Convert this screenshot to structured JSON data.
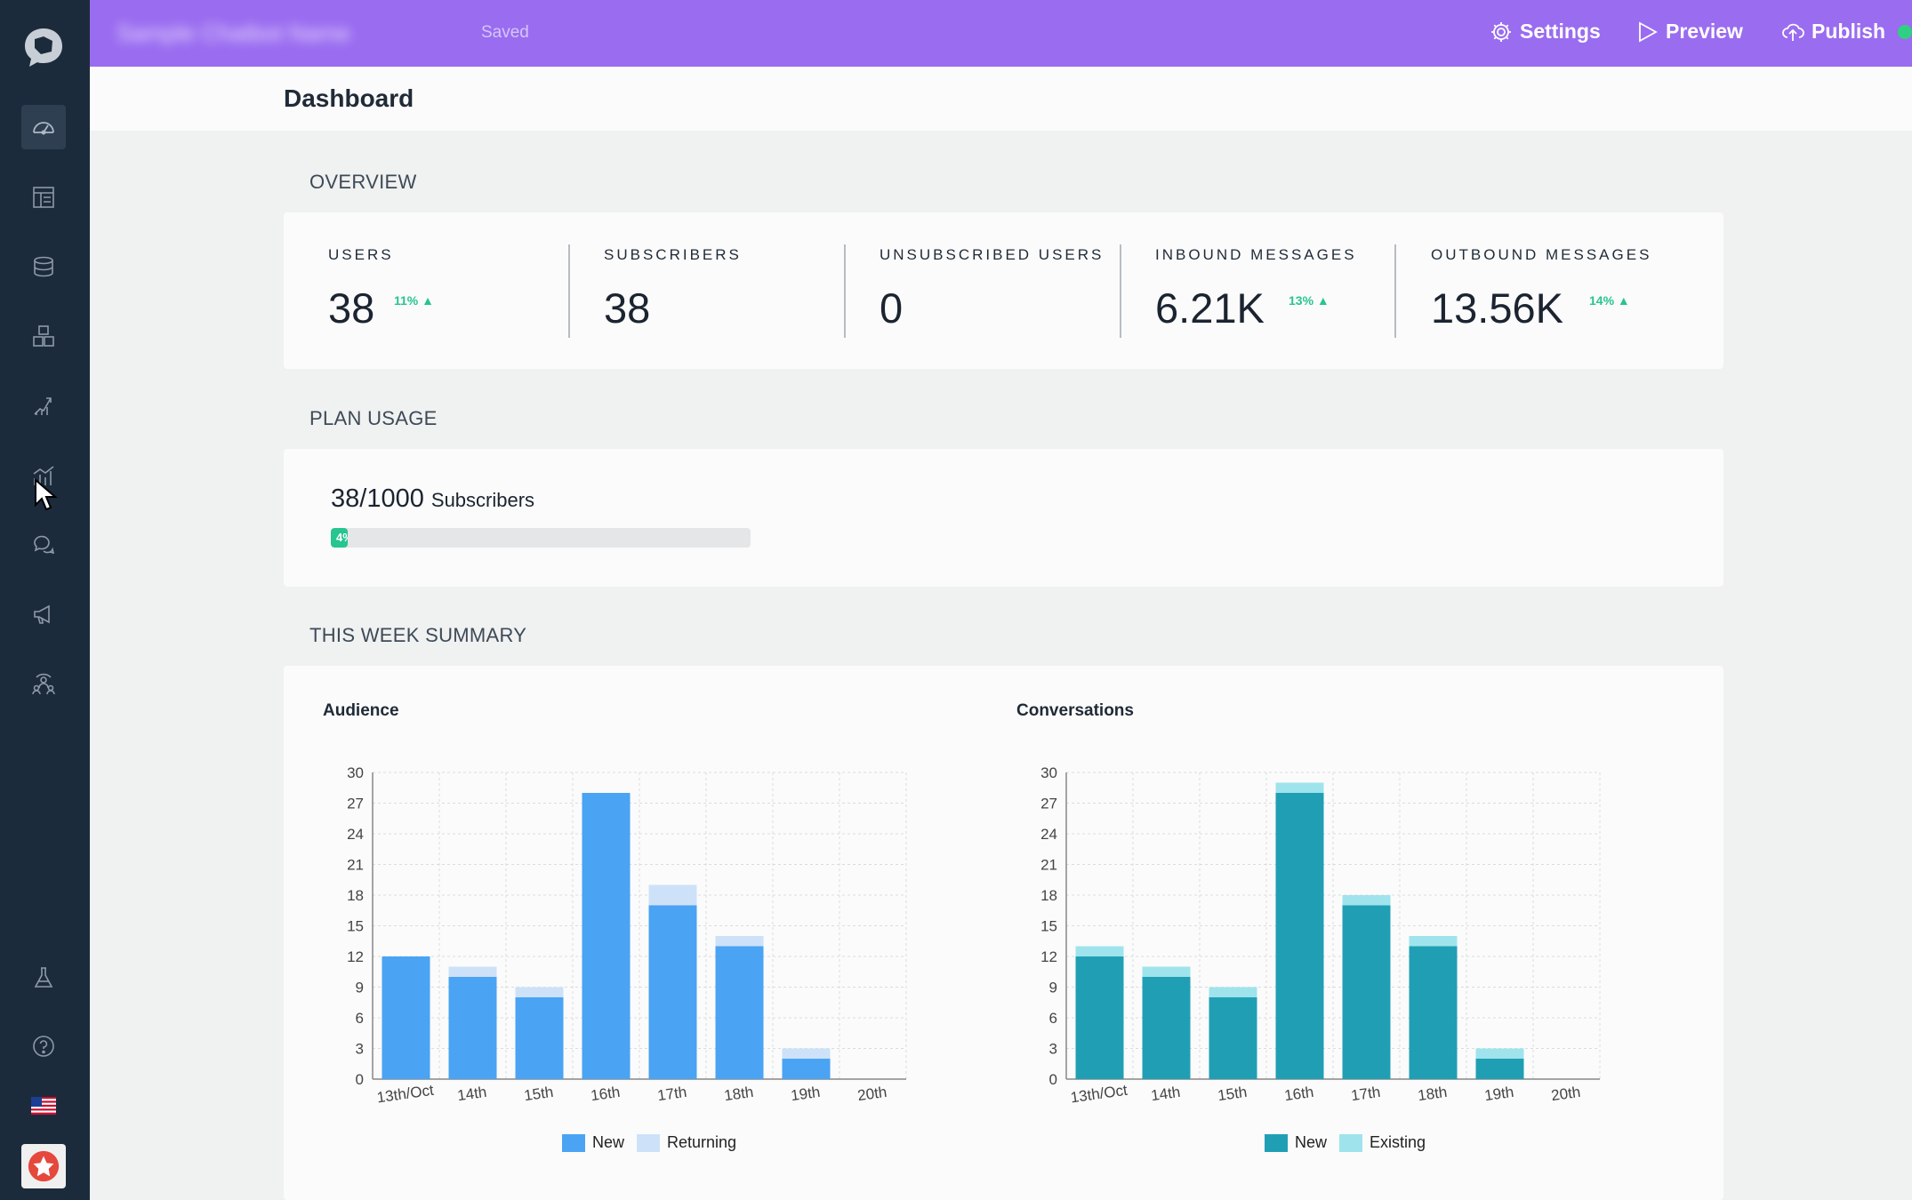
{
  "app": {
    "bot_name": "Sample Chatbot Name",
    "saved_label": "Saved"
  },
  "topbar": {
    "settings_label": "Settings",
    "preview_label": "Preview",
    "publish_label": "Publish"
  },
  "sidebar": {
    "items": [
      {
        "name": "dashboard",
        "icon": "speedometer-icon"
      },
      {
        "name": "builder",
        "icon": "layout-icon"
      },
      {
        "name": "database",
        "icon": "database-icon"
      },
      {
        "name": "integrations",
        "icon": "blocks-icon"
      },
      {
        "name": "growth",
        "icon": "growth-icon"
      },
      {
        "name": "analytics",
        "icon": "chart-icon"
      },
      {
        "name": "inbox",
        "icon": "chat-bubbles-icon"
      },
      {
        "name": "broadcast",
        "icon": "megaphone-icon"
      },
      {
        "name": "audience",
        "icon": "people-icon"
      }
    ],
    "bottom_items": [
      {
        "name": "labs",
        "icon": "flask-icon"
      },
      {
        "name": "help",
        "icon": "help-icon"
      },
      {
        "name": "language",
        "icon": "us-flag-icon"
      },
      {
        "name": "account",
        "icon": "avatar"
      }
    ]
  },
  "page": {
    "title": "Dashboard"
  },
  "overview": {
    "title": "OVERVIEW",
    "stats": [
      {
        "label": "USERS",
        "value": "38",
        "change": "11%"
      },
      {
        "label": "SUBSCRIBERS",
        "value": "38",
        "change": ""
      },
      {
        "label": "UNSUBSCRIBED USERS",
        "value": "0",
        "change": ""
      },
      {
        "label": "INBOUND MESSAGES",
        "value": "6.21K",
        "change": "13%"
      },
      {
        "label": "OUTBOUND MESSAGES",
        "value": "13.56K",
        "change": "14%"
      }
    ]
  },
  "plan_usage": {
    "title": "PLAN USAGE",
    "count": "38/1000",
    "unit": "Subscribers",
    "percent_label": "4%",
    "fraction": 0.04
  },
  "week_summary": {
    "title": "THIS WEEK SUMMARY"
  },
  "colors": {
    "accent": "#9a6cf0",
    "sidebar": "#1c2b3c",
    "positive": "#27c590",
    "audience_new": "#4aa3f3",
    "audience_returning": "#cde2f8",
    "conv_new": "#209fb4",
    "conv_existing": "#9fe4ec"
  },
  "chart_data": [
    {
      "type": "bar",
      "stacked": true,
      "title": "Audience",
      "categories": [
        "13th/Oct",
        "14th",
        "15th",
        "16th",
        "17th",
        "18th",
        "19th",
        "20th"
      ],
      "series": [
        {
          "name": "New",
          "values": [
            12,
            10,
            8,
            28,
            17,
            13,
            2,
            0
          ],
          "color": "#4aa3f3"
        },
        {
          "name": "Returning",
          "values": [
            0,
            1,
            1,
            0,
            2,
            1,
            1,
            0
          ],
          "color": "#cde2f8"
        }
      ],
      "ylim": [
        0,
        30
      ],
      "yticks": [
        0,
        3,
        6,
        9,
        12,
        15,
        18,
        21,
        24,
        27,
        30
      ],
      "grid": true,
      "legend": "bottom"
    },
    {
      "type": "bar",
      "stacked": true,
      "title": "Conversations",
      "categories": [
        "13th/Oct",
        "14th",
        "15th",
        "16th",
        "17th",
        "18th",
        "19th",
        "20th"
      ],
      "series": [
        {
          "name": "New",
          "values": [
            12,
            10,
            8,
            28,
            17,
            13,
            2,
            0
          ],
          "color": "#209fb4"
        },
        {
          "name": "Existing",
          "values": [
            1,
            1,
            1,
            1,
            1,
            1,
            1,
            0
          ],
          "color": "#9fe4ec"
        }
      ],
      "ylim": [
        0,
        30
      ],
      "yticks": [
        0,
        3,
        6,
        9,
        12,
        15,
        18,
        21,
        24,
        27,
        30
      ],
      "grid": true,
      "legend": "bottom"
    }
  ]
}
